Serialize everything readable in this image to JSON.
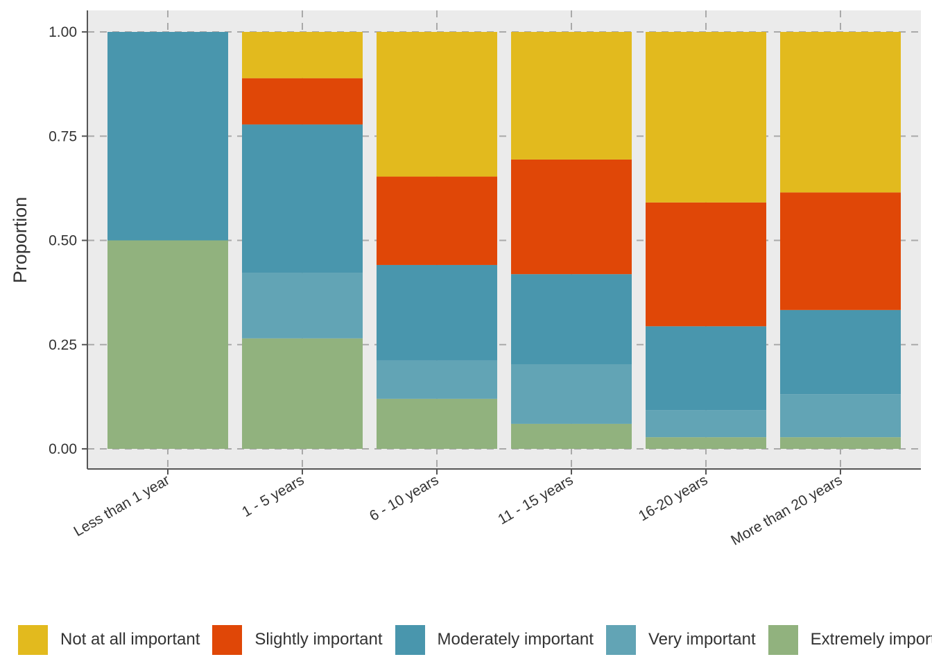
{
  "chart_data": {
    "type": "bar",
    "stacked": true,
    "ylabel": "Proportion",
    "ylim": [
      0,
      1
    ],
    "yticks": [
      "0.00",
      "0.25",
      "0.50",
      "0.75",
      "1.00"
    ],
    "grid": true,
    "legend_position": "bottom",
    "categories": [
      "Less than 1 year",
      "1 - 5 years",
      "6 - 10 years",
      "11 - 15 years",
      "16-20 years",
      "More than 20 years"
    ],
    "series": [
      {
        "name": "Extremely important",
        "color": "#91B27E",
        "values": [
          0.5,
          0.265,
          0.12,
          0.06,
          0.028,
          0.028
        ]
      },
      {
        "name": "Very important",
        "color": "#62A4B5",
        "values": [
          0.0,
          0.157,
          0.092,
          0.143,
          0.065,
          0.103
        ]
      },
      {
        "name": "Moderately important",
        "color": "#4996AD",
        "values": [
          0.5,
          0.356,
          0.229,
          0.216,
          0.201,
          0.202
        ]
      },
      {
        "name": "Slightly important",
        "color": "#E04707",
        "values": [
          0.0,
          0.111,
          0.212,
          0.275,
          0.297,
          0.282
        ]
      },
      {
        "name": "Not at all important",
        "color": "#E2BA1E",
        "values": [
          0.0,
          0.111,
          0.347,
          0.306,
          0.409,
          0.385
        ]
      }
    ]
  },
  "legend": {
    "items": [
      {
        "label": "Not at all important",
        "color": "#E2BA1E"
      },
      {
        "label": "Slightly important",
        "color": "#E04707"
      },
      {
        "label": "Moderately important",
        "color": "#4996AD"
      },
      {
        "label": "Very important",
        "color": "#62A4B5"
      },
      {
        "label": "Extremely important",
        "color": "#91B27E"
      }
    ]
  }
}
